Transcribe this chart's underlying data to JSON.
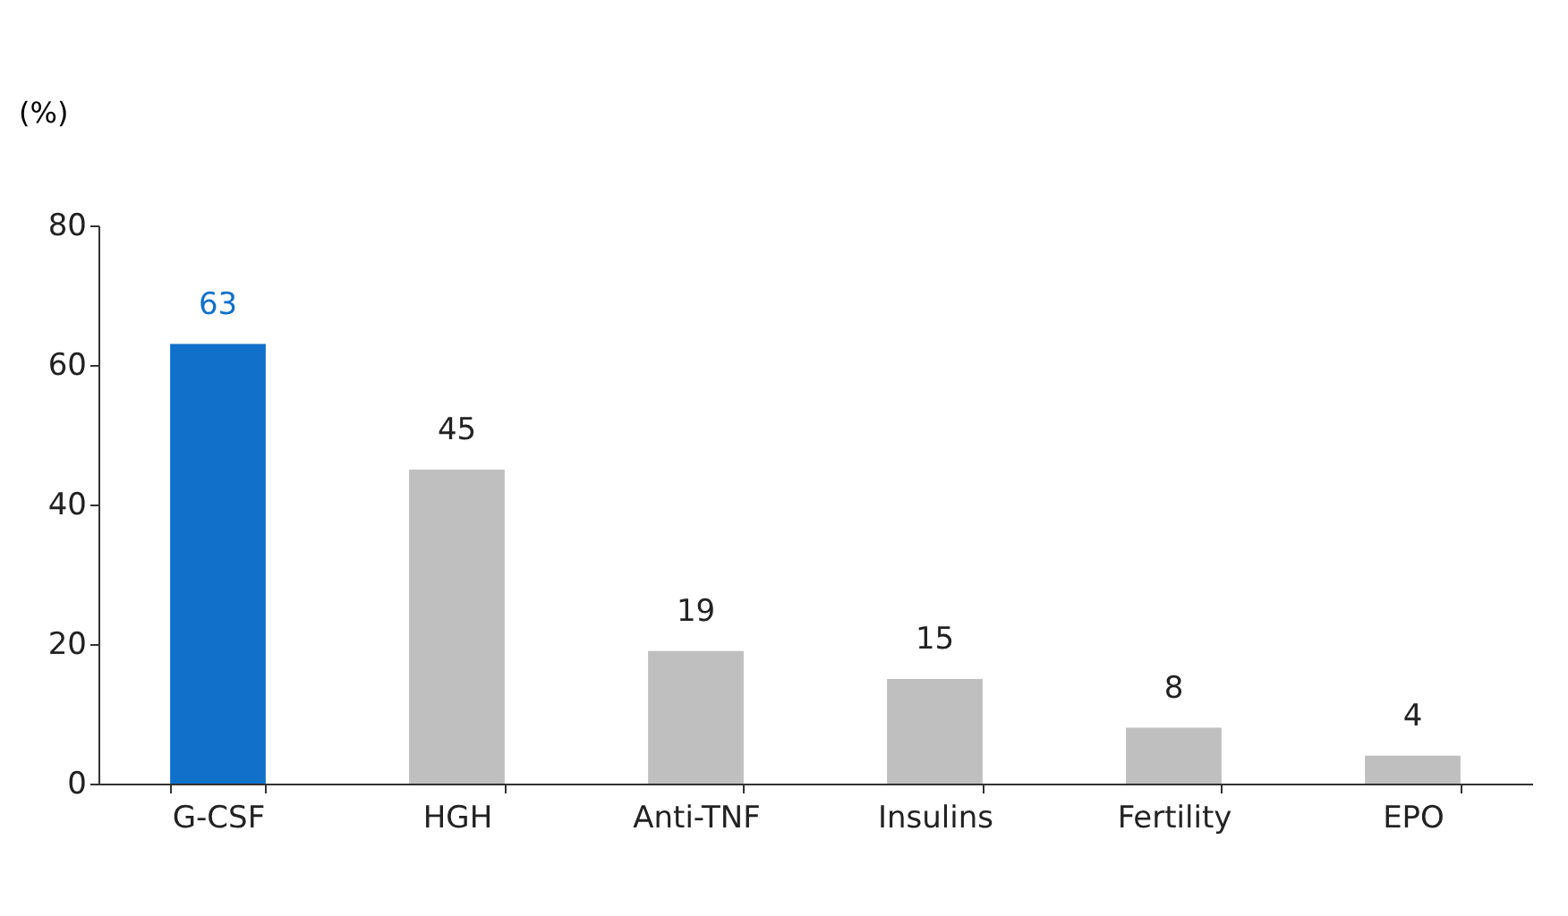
{
  "chart_data": {
    "type": "bar",
    "ylabel": "(%)",
    "categories": [
      "G-CSF",
      "HGH",
      "Anti-TNF",
      "Insulins",
      "Fertility",
      "EPO"
    ],
    "values": [
      63,
      45,
      19,
      15,
      8,
      4
    ],
    "colors": [
      "#1170c9",
      "#bfbfbf",
      "#bfbfbf",
      "#bfbfbf",
      "#bfbfbf",
      "#bfbfbf"
    ],
    "ylim": [
      0,
      80
    ],
    "yticks": [
      0,
      20,
      40,
      60,
      80
    ],
    "data_labels": true,
    "grid": false
  }
}
